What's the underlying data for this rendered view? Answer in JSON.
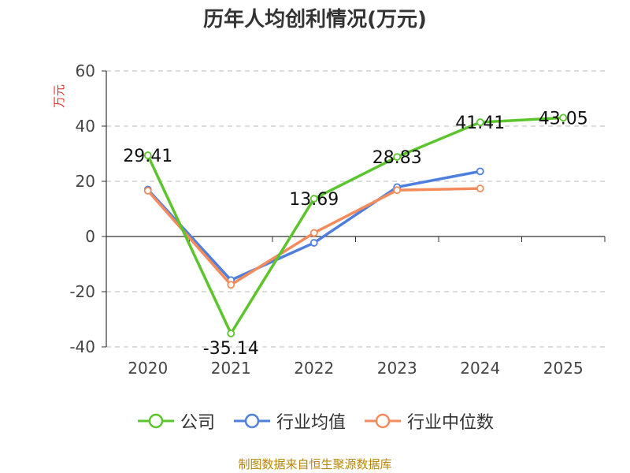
{
  "chart_data": {
    "type": "line",
    "title": "历年人均创利情况(万元)",
    "ylabel": "万元",
    "xlabel": "",
    "categories": [
      "2020",
      "2021",
      "2022",
      "2023",
      "2024",
      "2025"
    ],
    "ylim": [
      -40,
      60
    ],
    "yticks": [
      -40,
      -20,
      0,
      20,
      40,
      60
    ],
    "grid": true,
    "legend_position": "bottom",
    "series": [
      {
        "name": "公司",
        "color": "#5cc42c",
        "values": [
          29.41,
          -35.14,
          13.69,
          28.83,
          41.41,
          43.05
        ],
        "labels": [
          "29.41",
          "-35.14",
          "13.69",
          "28.83",
          "41.41",
          "43.05"
        ]
      },
      {
        "name": "行业均值",
        "color": "#4f7fde",
        "values": [
          17.0,
          -15.8,
          -2.3,
          17.9,
          23.6,
          null
        ]
      },
      {
        "name": "行业中位数",
        "color": "#f38b5c",
        "values": [
          16.6,
          -17.5,
          1.3,
          16.8,
          17.4,
          null
        ]
      }
    ]
  },
  "footer": "制图数据来自恒生聚源数据库"
}
